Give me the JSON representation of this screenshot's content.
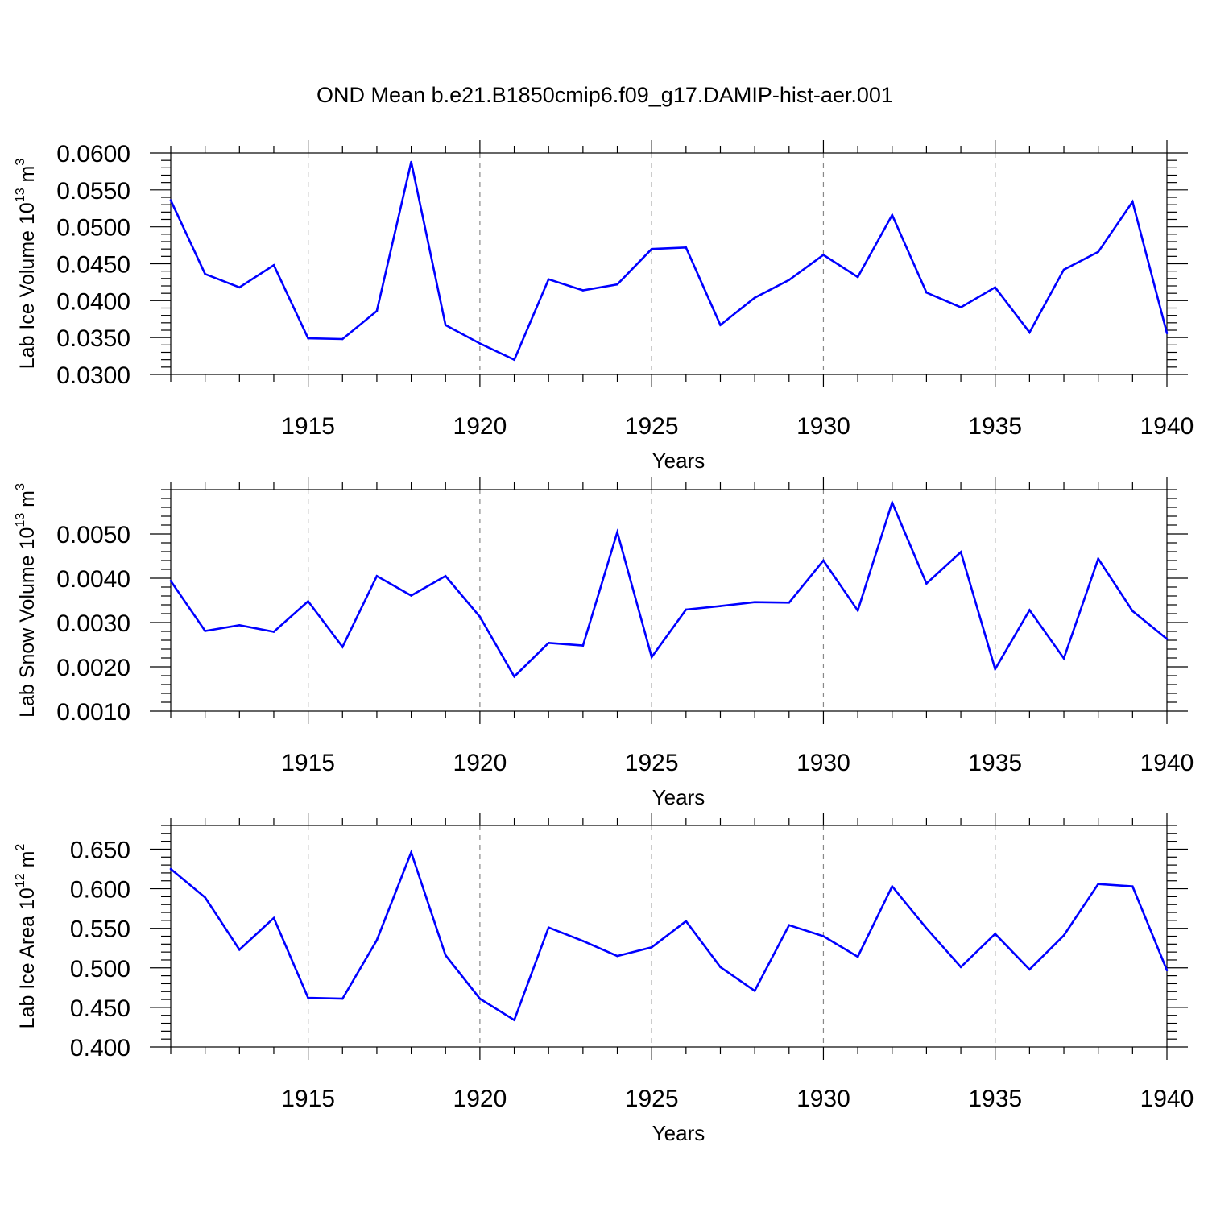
{
  "title": "OND Mean b.e21.B1850cmip6.f09_g17.DAMIP-hist-aer.001",
  "colors": {
    "line": "#0000ff",
    "axis": "#000000",
    "grid": "#888888"
  },
  "chart_data": [
    {
      "type": "line",
      "ylabel": "Lab Ice Volume 10",
      "ylabel_exp": "13",
      "ylabel_unit": " m",
      "ylabel_unit_exp": "3",
      "xlabel": "Years",
      "xlim": [
        1911,
        1940
      ],
      "ylim": [
        0.03,
        0.06
      ],
      "yticks": [
        0.03,
        0.035,
        0.04,
        0.045,
        0.05,
        0.055,
        0.06
      ],
      "ytick_labels": [
        "0.0300",
        "0.0350",
        "0.0400",
        "0.0450",
        "0.0500",
        "0.0550",
        "0.0600"
      ],
      "xticks": [
        1915,
        1920,
        1925,
        1930,
        1935,
        1940
      ],
      "xtick_labels": [
        "1915",
        "1920",
        "1925",
        "1930",
        "1935",
        "1940"
      ],
      "grid": "x-dashed",
      "x": [
        1911,
        1912,
        1913,
        1914,
        1915,
        1916,
        1917,
        1918,
        1919,
        1920,
        1921,
        1922,
        1923,
        1924,
        1925,
        1926,
        1927,
        1928,
        1929,
        1930,
        1931,
        1932,
        1933,
        1934,
        1935,
        1936,
        1937,
        1938,
        1939,
        1940
      ],
      "y": [
        0.0536,
        0.0436,
        0.0418,
        0.0448,
        0.0349,
        0.0348,
        0.0386,
        0.0588,
        0.0367,
        0.0342,
        0.032,
        0.0429,
        0.0414,
        0.0422,
        0.047,
        0.0472,
        0.0367,
        0.0404,
        0.0428,
        0.0462,
        0.0432,
        0.0516,
        0.0411,
        0.0391,
        0.0418,
        0.0357,
        0.0442,
        0.0466,
        0.0534,
        0.0356
      ]
    },
    {
      "type": "line",
      "ylabel": "Lab Snow Volume 10",
      "ylabel_exp": "13",
      "ylabel_unit": " m",
      "ylabel_unit_exp": "3",
      "xlabel": "Years",
      "xlim": [
        1911,
        1940
      ],
      "ylim": [
        0.001,
        0.006
      ],
      "yticks": [
        0.001,
        0.002,
        0.003,
        0.004,
        0.005
      ],
      "ytick_labels": [
        "0.0010",
        "0.0020",
        "0.0030",
        "0.0040",
        "0.0050"
      ],
      "xticks": [
        1915,
        1920,
        1925,
        1930,
        1935,
        1940
      ],
      "xtick_labels": [
        "1915",
        "1920",
        "1925",
        "1930",
        "1935",
        "1940"
      ],
      "grid": "x-dashed",
      "x": [
        1911,
        1912,
        1913,
        1914,
        1915,
        1916,
        1917,
        1918,
        1919,
        1920,
        1921,
        1922,
        1923,
        1924,
        1925,
        1926,
        1927,
        1928,
        1929,
        1930,
        1931,
        1932,
        1933,
        1934,
        1935,
        1936,
        1937,
        1938,
        1939,
        1940
      ],
      "y": [
        0.00394,
        0.00281,
        0.00294,
        0.00279,
        0.00348,
        0.00245,
        0.00405,
        0.00361,
        0.00405,
        0.00313,
        0.00178,
        0.00254,
        0.00248,
        0.00504,
        0.00222,
        0.00329,
        0.00337,
        0.00346,
        0.00345,
        0.0044,
        0.00327,
        0.00571,
        0.00388,
        0.00459,
        0.00195,
        0.00328,
        0.00219,
        0.00444,
        0.00326,
        0.00263
      ]
    },
    {
      "type": "line",
      "ylabel": "Lab Ice Area 10",
      "ylabel_exp": "12",
      "ylabel_unit": " m",
      "ylabel_unit_exp": "2",
      "xlabel": "Years",
      "xlim": [
        1911,
        1940
      ],
      "ylim": [
        0.4,
        0.68
      ],
      "yticks": [
        0.4,
        0.45,
        0.5,
        0.55,
        0.6,
        0.65
      ],
      "ytick_labels": [
        "0.400",
        "0.450",
        "0.500",
        "0.550",
        "0.600",
        "0.650"
      ],
      "xticks": [
        1915,
        1920,
        1925,
        1930,
        1935,
        1940
      ],
      "xtick_labels": [
        "1915",
        "1920",
        "1925",
        "1930",
        "1935",
        "1940"
      ],
      "grid": "x-dashed",
      "x": [
        1911,
        1912,
        1913,
        1914,
        1915,
        1916,
        1917,
        1918,
        1919,
        1920,
        1921,
        1922,
        1923,
        1924,
        1925,
        1926,
        1927,
        1928,
        1929,
        1930,
        1931,
        1932,
        1933,
        1934,
        1935,
        1936,
        1937,
        1938,
        1939,
        1940
      ],
      "y": [
        0.625,
        0.589,
        0.523,
        0.563,
        0.462,
        0.461,
        0.535,
        0.646,
        0.516,
        0.461,
        0.434,
        0.551,
        0.534,
        0.515,
        0.526,
        0.559,
        0.501,
        0.471,
        0.554,
        0.54,
        0.514,
        0.603,
        0.55,
        0.501,
        0.543,
        0.498,
        0.541,
        0.606,
        0.603,
        0.497
      ]
    }
  ]
}
